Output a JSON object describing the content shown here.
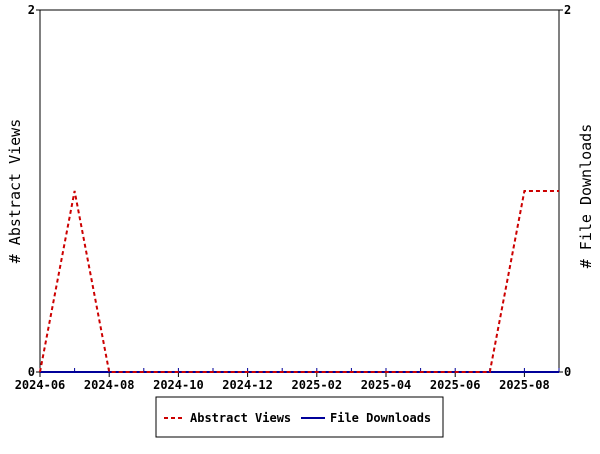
{
  "chart_data": {
    "type": "line",
    "x": [
      "2024-06",
      "2024-07",
      "2024-08",
      "2024-09",
      "2024-10",
      "2024-11",
      "2024-12",
      "2025-01",
      "2025-02",
      "2025-03",
      "2025-04",
      "2025-05",
      "2025-06",
      "2025-07",
      "2025-08",
      "2025-09"
    ],
    "series": [
      {
        "name": "Abstract Views",
        "values": [
          0,
          1,
          0,
          0,
          0,
          0,
          0,
          0,
          0,
          0,
          0,
          0,
          0,
          0,
          1,
          1
        ],
        "axis": "left",
        "color": "#cc0000",
        "style": "dashed"
      },
      {
        "name": "File Downloads",
        "values": [
          0,
          0,
          0,
          0,
          0,
          0,
          0,
          0,
          0,
          0,
          0,
          0,
          0,
          0,
          0,
          0
        ],
        "axis": "right",
        "color": "#000099",
        "style": "solid"
      }
    ],
    "x_tick_labels": [
      "2024-06",
      "2024-08",
      "2024-10",
      "2024-12",
      "2025-02",
      "2025-04",
      "2025-06",
      "2025-08"
    ],
    "ylabel": "# Abstract Views",
    "y2label": "# File Downloads",
    "ylim": [
      0,
      2
    ],
    "y2lim": [
      0,
      2
    ],
    "y_ticks": [
      "0",
      "2"
    ],
    "y2_ticks": [
      "0",
      "2"
    ],
    "grid": false,
    "legend_position": "bottom"
  }
}
